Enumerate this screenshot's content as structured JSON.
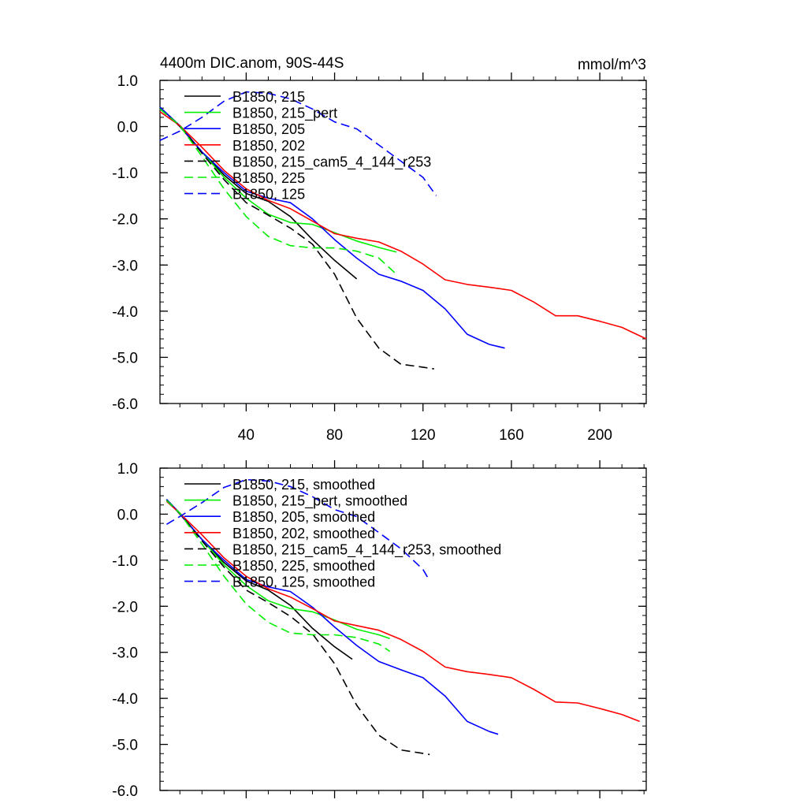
{
  "colors": {
    "black": "#000000",
    "green": "#00ee00",
    "blue": "#0000ff",
    "red": "#ff0000"
  },
  "chart_data": [
    {
      "type": "line",
      "title": "4400m DIC.anom, 90S-44S",
      "units": "mmol/m^3",
      "xlim": [
        1,
        221
      ],
      "ylim": [
        -6.0,
        1.0
      ],
      "x_ticks": [
        40,
        80,
        120,
        160,
        200
      ],
      "x_tick_labels": [
        "40",
        "80",
        "120",
        "160",
        "200"
      ],
      "y_ticks": [
        1.0,
        0.0,
        -1.0,
        -2.0,
        -3.0,
        -4.0,
        -5.0,
        -6.0
      ],
      "y_tick_labels": [
        "1.0",
        "0.0",
        "-1.0",
        "-2.0",
        "-3.0",
        "-4.0",
        "-5.0",
        "-6.0"
      ],
      "legend_position": "top-left",
      "series": [
        {
          "name": "B1850, 215",
          "color": "#000000",
          "dash": "solid",
          "x": [
            1,
            10,
            20,
            30,
            40,
            50,
            60,
            70,
            80,
            90
          ],
          "y": [
            0.42,
            0.0,
            -0.55,
            -1.05,
            -1.45,
            -1.62,
            -1.95,
            -2.45,
            -2.9,
            -3.3
          ]
        },
        {
          "name": "B1850, 215_pert",
          "color": "#00ee00",
          "dash": "solid",
          "x": [
            1,
            10,
            20,
            30,
            40,
            50,
            60,
            70,
            80,
            90,
            100,
            108
          ],
          "y": [
            0.42,
            0.02,
            -0.55,
            -1.1,
            -1.55,
            -1.9,
            -2.08,
            -2.12,
            -2.3,
            -2.48,
            -2.62,
            -2.72
          ]
        },
        {
          "name": "B1850, 205",
          "color": "#0000ff",
          "dash": "solid",
          "x": [
            1,
            10,
            20,
            30,
            40,
            50,
            60,
            70,
            80,
            90,
            100,
            110,
            120,
            130,
            140,
            150,
            157
          ],
          "y": [
            0.42,
            0.02,
            -0.55,
            -1.0,
            -1.4,
            -1.55,
            -1.65,
            -2.0,
            -2.45,
            -2.85,
            -3.2,
            -3.35,
            -3.55,
            -3.95,
            -4.5,
            -4.72,
            -4.8
          ]
        },
        {
          "name": "B1850, 202",
          "color": "#ff0000",
          "dash": "solid",
          "x": [
            1,
            10,
            20,
            30,
            40,
            50,
            60,
            70,
            80,
            90,
            100,
            110,
            120,
            130,
            140,
            150,
            160,
            170,
            180,
            190,
            200,
            210,
            221
          ],
          "y": [
            0.32,
            0.02,
            -0.45,
            -0.95,
            -1.35,
            -1.6,
            -1.78,
            -2.05,
            -2.32,
            -2.42,
            -2.5,
            -2.7,
            -2.98,
            -3.32,
            -3.42,
            -3.48,
            -3.55,
            -3.8,
            -4.1,
            -4.1,
            -4.22,
            -4.35,
            -4.6
          ]
        },
        {
          "name": "B1850, 215_cam5_4_144_r253",
          "color": "#000000",
          "dash": "dash",
          "x": [
            1,
            10,
            20,
            30,
            40,
            50,
            60,
            70,
            80,
            90,
            100,
            110,
            118,
            125
          ],
          "y": [
            0.38,
            0.02,
            -0.58,
            -1.15,
            -1.65,
            -1.92,
            -2.2,
            -2.55,
            -3.2,
            -4.15,
            -4.8,
            -5.15,
            -5.2,
            -5.25
          ]
        },
        {
          "name": "B1850, 225",
          "color": "#00ee00",
          "dash": "dash",
          "x": [
            1,
            10,
            20,
            30,
            40,
            50,
            60,
            70,
            80,
            90,
            100,
            108
          ],
          "y": [
            0.38,
            0.02,
            -0.65,
            -1.35,
            -1.95,
            -2.38,
            -2.58,
            -2.63,
            -2.63,
            -2.7,
            -2.85,
            -3.2
          ]
        },
        {
          "name": "B1850, 125",
          "color": "#0000ff",
          "dash": "dash",
          "x": [
            1,
            10,
            20,
            30,
            40,
            50,
            60,
            70,
            80,
            90,
            100,
            110,
            120,
            126
          ],
          "y": [
            -0.3,
            -0.1,
            0.2,
            0.55,
            0.75,
            0.72,
            0.6,
            0.38,
            0.1,
            -0.05,
            -0.4,
            -0.75,
            -1.1,
            -1.5
          ]
        }
      ]
    },
    {
      "type": "line",
      "title": "",
      "units": "",
      "xlim": [
        1,
        221
      ],
      "ylim": [
        -6.0,
        1.0
      ],
      "x_ticks": [
        40,
        80,
        120,
        160,
        200
      ],
      "x_tick_labels": [],
      "y_ticks": [
        1.0,
        0.0,
        -1.0,
        -2.0,
        -3.0,
        -4.0,
        -5.0,
        -6.0
      ],
      "y_tick_labels": [
        "1.0",
        "0.0",
        "-1.0",
        "-2.0",
        "-3.0",
        "-4.0",
        "-5.0",
        "-6.0"
      ],
      "legend_position": "top-left",
      "series": [
        {
          "name": "B1850, 215, smoothed",
          "color": "#000000",
          "dash": "solid",
          "x": [
            4,
            10,
            20,
            30,
            40,
            50,
            60,
            70,
            80,
            88
          ],
          "y": [
            0.32,
            0.0,
            -0.55,
            -1.05,
            -1.45,
            -1.65,
            -1.98,
            -2.48,
            -2.88,
            -3.15
          ]
        },
        {
          "name": "B1850, 215_pert, smoothed",
          "color": "#00ee00",
          "dash": "solid",
          "x": [
            4,
            10,
            20,
            30,
            40,
            50,
            60,
            70,
            80,
            90,
            100,
            105
          ],
          "y": [
            0.32,
            0.02,
            -0.55,
            -1.1,
            -1.55,
            -1.88,
            -2.05,
            -2.12,
            -2.3,
            -2.5,
            -2.62,
            -2.7
          ]
        },
        {
          "name": "B1850, 205, smoothed",
          "color": "#0000ff",
          "dash": "solid",
          "x": [
            4,
            10,
            20,
            30,
            40,
            50,
            60,
            70,
            80,
            90,
            100,
            110,
            120,
            130,
            140,
            150,
            154
          ],
          "y": [
            0.32,
            0.02,
            -0.55,
            -1.0,
            -1.42,
            -1.58,
            -1.68,
            -2.02,
            -2.45,
            -2.85,
            -3.2,
            -3.38,
            -3.55,
            -3.95,
            -4.5,
            -4.72,
            -4.78
          ]
        },
        {
          "name": "B1850, 202, smoothed",
          "color": "#ff0000",
          "dash": "solid",
          "x": [
            4,
            10,
            20,
            30,
            40,
            50,
            60,
            70,
            80,
            90,
            100,
            110,
            120,
            130,
            140,
            150,
            160,
            170,
            180,
            190,
            200,
            210,
            218
          ],
          "y": [
            0.28,
            0.02,
            -0.45,
            -0.95,
            -1.35,
            -1.62,
            -1.8,
            -2.05,
            -2.32,
            -2.42,
            -2.52,
            -2.72,
            -2.98,
            -3.32,
            -3.42,
            -3.48,
            -3.55,
            -3.8,
            -4.08,
            -4.1,
            -4.22,
            -4.35,
            -4.5
          ]
        },
        {
          "name": "B1850, 215_cam5_4_144_r253, smoothed",
          "color": "#000000",
          "dash": "dash",
          "x": [
            4,
            10,
            20,
            30,
            40,
            50,
            60,
            70,
            80,
            90,
            100,
            110,
            118,
            123
          ],
          "y": [
            0.3,
            0.02,
            -0.58,
            -1.15,
            -1.65,
            -1.92,
            -2.22,
            -2.6,
            -3.25,
            -4.15,
            -4.8,
            -5.12,
            -5.18,
            -5.22
          ]
        },
        {
          "name": "B1850, 225, smoothed",
          "color": "#00ee00",
          "dash": "dash",
          "x": [
            4,
            10,
            20,
            30,
            40,
            50,
            60,
            70,
            80,
            90,
            100,
            105
          ],
          "y": [
            0.3,
            0.02,
            -0.65,
            -1.35,
            -1.95,
            -2.35,
            -2.58,
            -2.62,
            -2.62,
            -2.68,
            -2.82,
            -2.98
          ]
        },
        {
          "name": "B1850, 125, smoothed",
          "color": "#0000ff",
          "dash": "dash",
          "x": [
            4,
            10,
            20,
            30,
            40,
            50,
            60,
            70,
            80,
            90,
            100,
            110,
            120,
            123
          ],
          "y": [
            -0.22,
            -0.05,
            0.25,
            0.58,
            0.75,
            0.72,
            0.6,
            0.38,
            0.1,
            -0.05,
            -0.4,
            -0.75,
            -1.2,
            -1.45
          ]
        }
      ]
    }
  ]
}
